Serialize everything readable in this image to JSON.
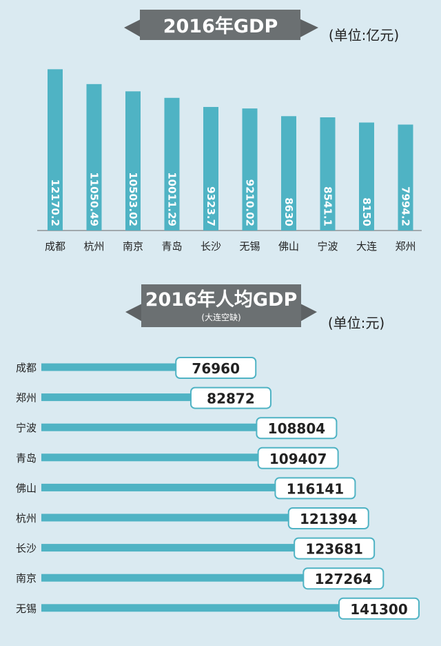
{
  "colors": {
    "background": "#daeaf1",
    "bar": "#4fb3c4",
    "banner": "#5e6264",
    "banner_text": "#ffffff",
    "text": "#222222",
    "label_border": "#4fb3c4",
    "label_fill": "#ffffff"
  },
  "chart_data": [
    {
      "type": "bar",
      "orientation": "vertical",
      "title": "2016年GDP",
      "unit": "(单位:亿元)",
      "categories": [
        "成都",
        "杭州",
        "南京",
        "青岛",
        "长沙",
        "无锡",
        "佛山",
        "宁波",
        "大连",
        "郑州"
      ],
      "values": [
        12170.2,
        11050.49,
        10503.02,
        10011.29,
        9323.7,
        9210.02,
        8630,
        8541.1,
        8150,
        7994.2
      ],
      "value_labels": [
        "12170.2",
        "11050.49",
        "10503.02",
        "10011.29",
        "9323.7",
        "9210.02",
        "8630",
        "8541.1",
        "8150",
        "7994.2"
      ],
      "ylim": [
        0,
        12500
      ],
      "grid": false,
      "legend": "none"
    },
    {
      "type": "bar",
      "orientation": "horizontal",
      "title": "2016年人均GDP",
      "subtitle": "(大连空缺)",
      "unit": "(单位:元)",
      "categories": [
        "成都",
        "郑州",
        "宁波",
        "青岛",
        "佛山",
        "杭州",
        "长沙",
        "南京",
        "无锡"
      ],
      "values": [
        76960,
        82872,
        108804,
        109407,
        116141,
        121394,
        123681,
        127264,
        141300
      ],
      "value_labels": [
        "76960",
        "82872",
        "108804",
        "109407",
        "116141",
        "121394",
        "123681",
        "127264",
        "141300"
      ],
      "xlim": [
        0,
        141300
      ],
      "grid": false,
      "legend": "none"
    }
  ]
}
